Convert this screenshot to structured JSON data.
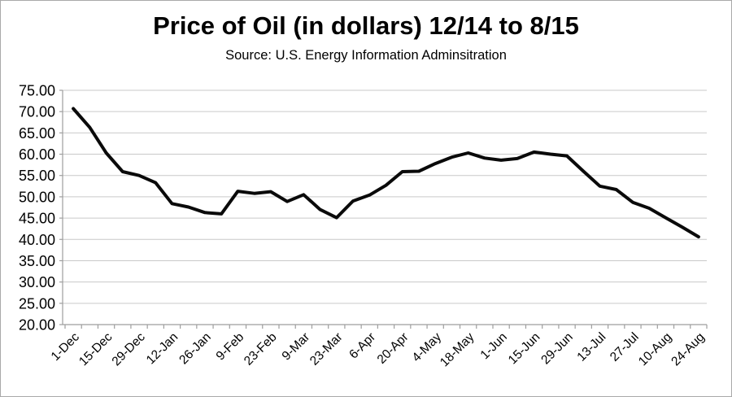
{
  "page": {
    "title": "Price of Oil (in dollars) 12/14 to 8/15",
    "subtitle": "Source: U.S. Energy Information Adminsitration"
  },
  "chart_data": {
    "type": "line",
    "title": "Price of Oil (in dollars) 12/14 to 8/15",
    "subtitle": "Source: U.S. Energy Information Adminsitration",
    "xlabel": "",
    "ylabel": "",
    "x_tick_labels": [
      "1-Dec",
      "15-Dec",
      "29-Dec",
      "12-Jan",
      "26-Jan",
      "9-Feb",
      "23-Feb",
      "9-Mar",
      "23-Mar",
      "6-Apr",
      "20-Apr",
      "4-May",
      "18-May",
      "1-Jun",
      "15-Jun",
      "29-Jun",
      "13-Jul",
      "27-Jul",
      "10-Aug",
      "24-Aug"
    ],
    "x_label_step": 2,
    "points_per_label_gap_note": "weekly data, labels every 2nd point",
    "values": [
      70.7,
      66.3,
      60.3,
      55.9,
      55.0,
      53.3,
      48.4,
      47.6,
      46.3,
      46.0,
      51.3,
      50.8,
      51.2,
      48.9,
      50.5,
      47.0,
      45.1,
      49.0,
      50.4,
      52.7,
      55.9,
      56.0,
      57.8,
      59.3,
      60.3,
      59.1,
      58.6,
      59.0,
      60.5,
      60.0,
      59.6,
      56.0,
      52.5,
      51.7,
      48.7,
      47.3,
      45.1,
      42.9,
      40.6
    ],
    "ylim": [
      20,
      75
    ],
    "ytick_step": 5,
    "ytick_decimals": 2,
    "grid": "horizontal",
    "legend": "none",
    "line_color": "#0a0a0a",
    "line_width": 4,
    "gridline_color": "#c9c9c9",
    "axis_color": "#9e9e9e",
    "label_color": "#000000",
    "background": "#ffffff"
  }
}
